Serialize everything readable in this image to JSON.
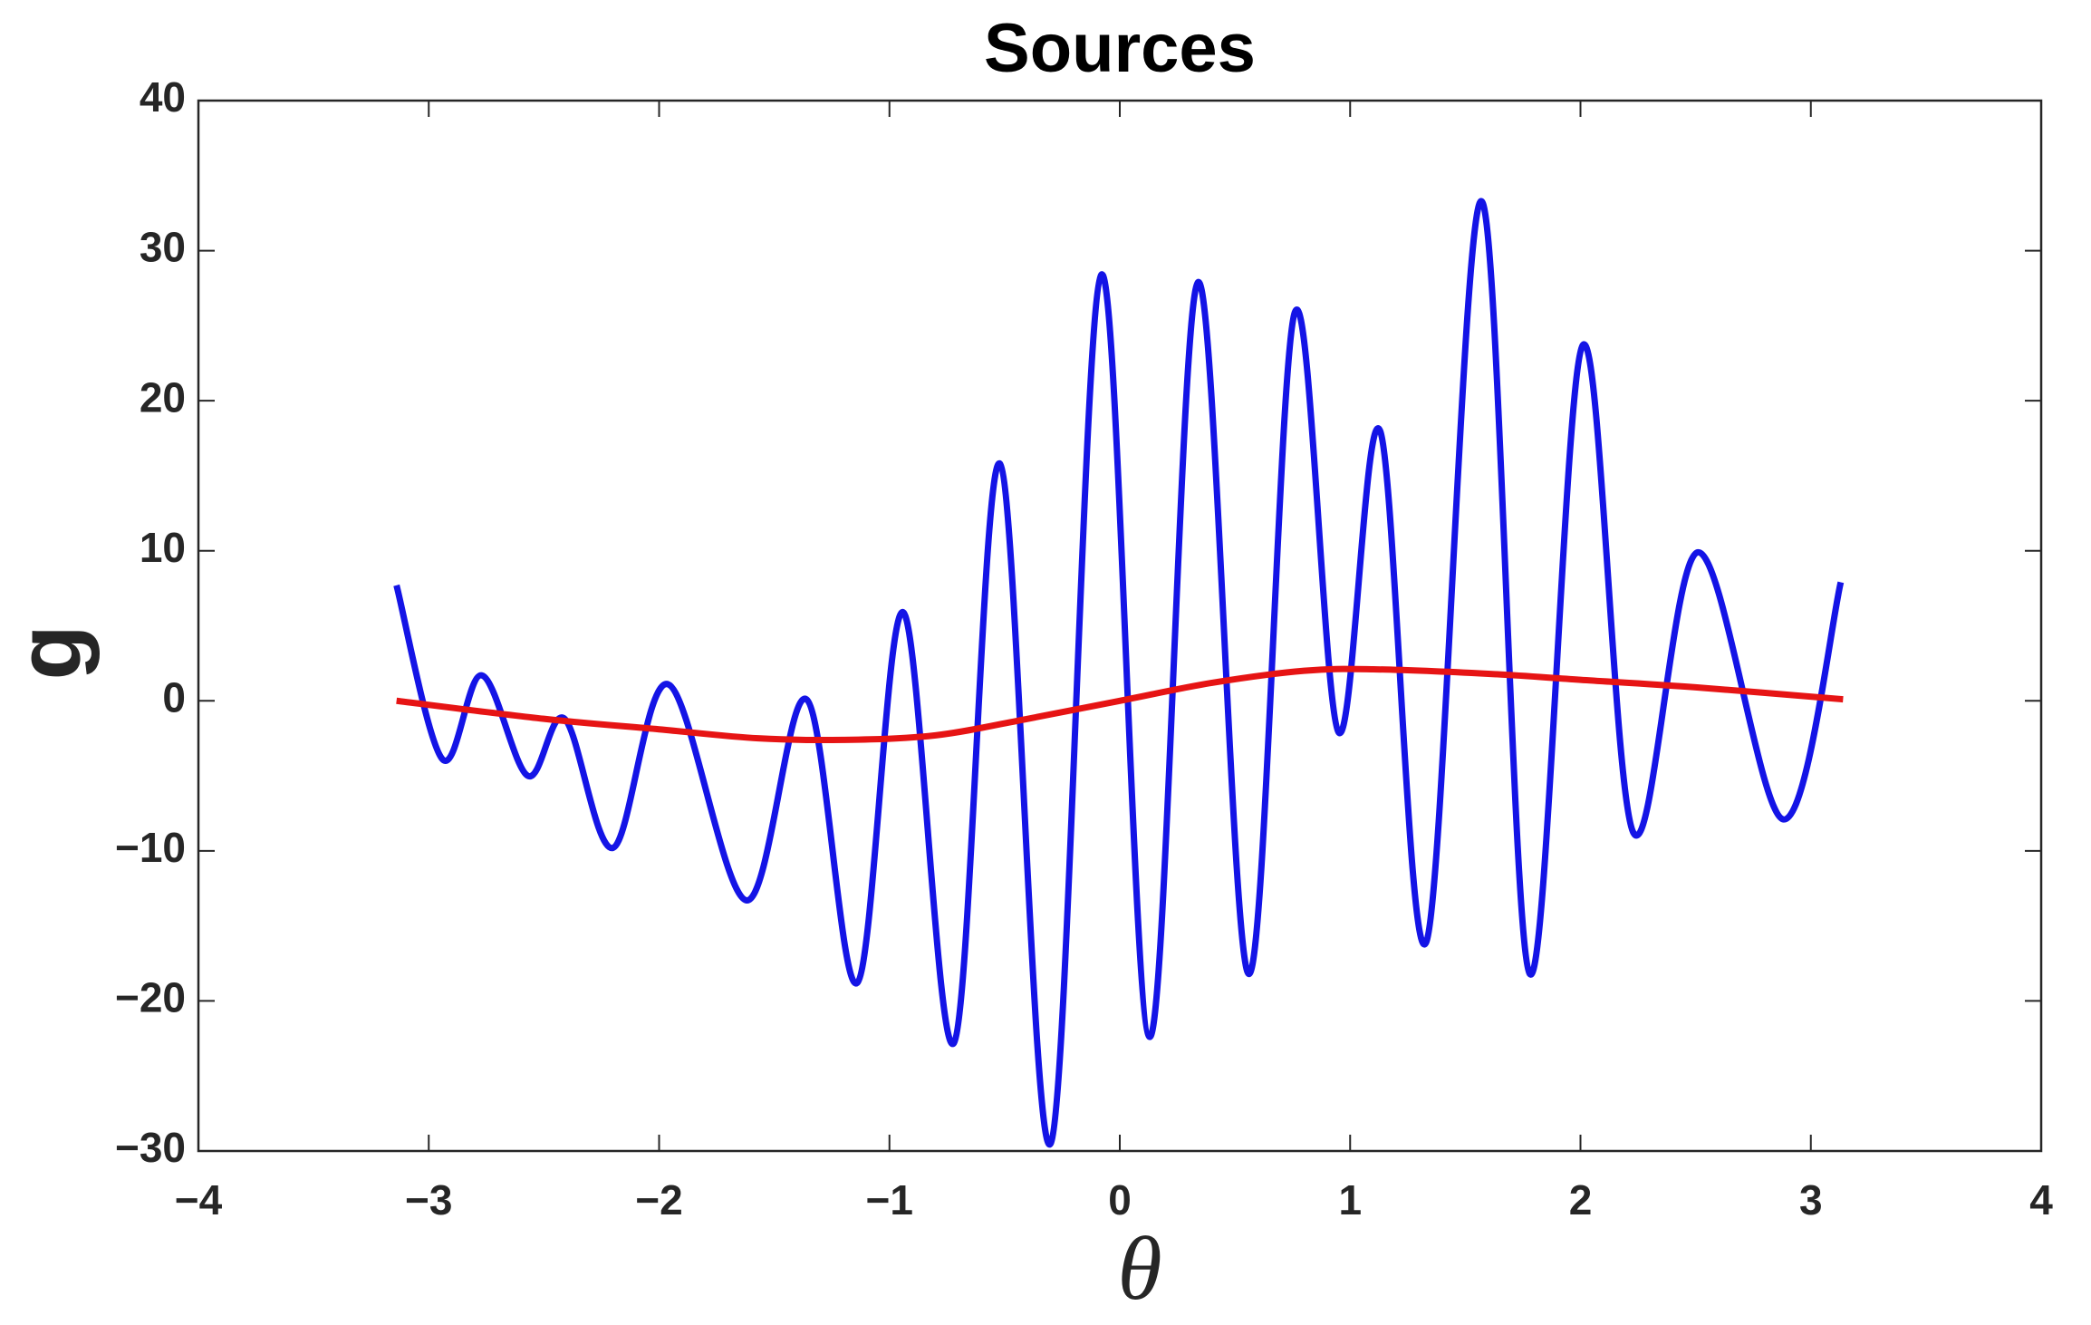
{
  "chart_data": {
    "type": "line",
    "title": "Sources",
    "xlabel": "θ",
    "ylabel": "g",
    "xlim": [
      -4,
      4
    ],
    "ylim": [
      -30,
      40
    ],
    "xticks": [
      {
        "value": -4,
        "label": "−4"
      },
      {
        "value": -3,
        "label": "−3"
      },
      {
        "value": -2,
        "label": "−2"
      },
      {
        "value": -1,
        "label": "−1"
      },
      0,
      1,
      2,
      3,
      4
    ],
    "yticks": [
      {
        "value": -30,
        "label": "−30"
      },
      {
        "value": -20,
        "label": "−20"
      },
      {
        "value": -10,
        "label": "−10"
      },
      0,
      10,
      20,
      30,
      40
    ],
    "grid": false,
    "series": [
      {
        "color": "#1414e6",
        "x": [
          -3.14,
          -2.94,
          -2.77,
          -2.57,
          -2.41,
          -2.2,
          -1.96,
          -1.62,
          -1.36,
          -1.14,
          -0.94,
          -0.72,
          -0.52,
          -0.3,
          -0.08,
          0.13,
          0.34,
          0.56,
          0.76,
          0.95,
          1.13,
          1.33,
          1.57,
          1.78,
          2.01,
          2.23,
          2.51,
          2.88,
          3.13
        ],
        "values": [
          7.7,
          -3.9,
          1.7,
          -5.0,
          -1.2,
          -9.8,
          1.1,
          -13.3,
          0.1,
          -18.8,
          5.9,
          -22.8,
          15.8,
          -29.5,
          28.4,
          -22.4,
          27.9,
          -18.2,
          25.9,
          -2.1,
          18.0,
          -16.1,
          33.3,
          -18.2,
          23.7,
          -8.8,
          9.9,
          -7.9,
          7.9
        ]
      },
      {
        "color": "#e61414",
        "x": [
          -3.14,
          -2.5,
          -2.0,
          -1.57,
          -1.2,
          -0.8,
          -0.4,
          0,
          0.4,
          0.8,
          1.1,
          1.6,
          2.0,
          2.5,
          3.14
        ],
        "values": [
          0,
          -1.2,
          -1.9,
          -2.5,
          -2.6,
          -2.3,
          -1.2,
          0,
          1.2,
          2.0,
          2.1,
          1.8,
          1.4,
          0.9,
          0.1
        ]
      }
    ]
  }
}
